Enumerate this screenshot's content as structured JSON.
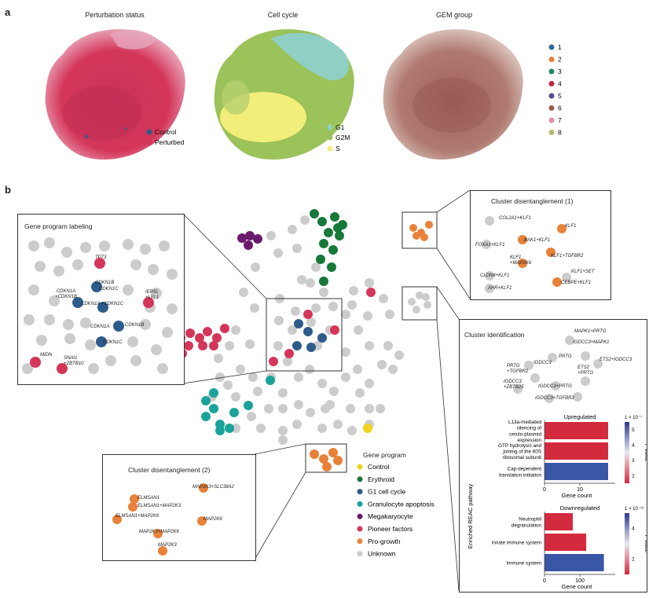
{
  "panel_a": {
    "letter": "a",
    "titles": [
      "Perturbation status",
      "Cell cycle",
      "GEM group"
    ],
    "perturbation_legend": [
      {
        "label": "Control",
        "color": "#2e5c8a"
      },
      {
        "label": "Perturbed",
        "color": "#d4365a"
      }
    ],
    "cellcycle_legend": [
      {
        "label": "G1",
        "color": "#8fcfc4"
      },
      {
        "label": "G2M",
        "color": "#9cc25a"
      },
      {
        "label": "S",
        "color": "#f2ee7a"
      }
    ],
    "gem_legend": [
      {
        "label": "1",
        "color": "#2e6b99"
      },
      {
        "label": "2",
        "color": "#e8823a"
      },
      {
        "label": "3",
        "color": "#1f8c5c"
      },
      {
        "label": "4",
        "color": "#c2253c"
      },
      {
        "label": "5",
        "color": "#5c4a8c"
      },
      {
        "label": "6",
        "color": "#9c5a4a"
      },
      {
        "label": "7",
        "color": "#e08ab0"
      },
      {
        "label": "8",
        "color": "#b8b870"
      }
    ]
  },
  "panel_b": {
    "letter": "b",
    "gene_program_title": "Gene program",
    "gene_program_legend": [
      {
        "label": "Control",
        "color": "#f2d21b"
      },
      {
        "label": "Erythroid",
        "color": "#17783a"
      },
      {
        "label": "G1 cell cycle",
        "color": "#2e5c8a"
      },
      {
        "label": "Granulocyte apoptosis",
        "color": "#1aa39a"
      },
      {
        "label": "Megakaryocyte",
        "color": "#6b1a6b"
      },
      {
        "label": "Pioneer factors",
        "color": "#d4365a"
      },
      {
        "label": "Pro-growth",
        "color": "#e8823a"
      },
      {
        "label": "Unknown",
        "color": "#cccccc"
      }
    ],
    "gene_program_labeling": {
      "title": "Gene program labeling",
      "labels": [
        "TP73",
        "CDKN1B",
        "CDKN1C",
        "CDKN1A +CDKN1B",
        "CDKN1A +CDKN1C",
        "IER5L +LYL1",
        "CDKN1A",
        "CDKN1B",
        "CDKN1C",
        "MIDN",
        "SNAI1 +ZBTB10"
      ]
    },
    "cluster1": {
      "title": "Cluster disentanglement (1)",
      "labels": [
        "COL2A1+KLF1",
        "KLF1",
        "BAK1+KLF1",
        "FOXA1+KLF1",
        "KLF1 +MAP2K6",
        "KLF1+TGFBR2",
        "CLDN6+KLF1",
        "KLF1+SET",
        "AHR+KLF1",
        "CEBPE+KLF1"
      ]
    },
    "cluster2": {
      "title": "Cluster disentanglement (2)",
      "labels": [
        "MAP2K3+SLC38A2",
        "ELMSAN1",
        "ELMSAN1+MAP2K3",
        "ELMSAN1+MAP2K6",
        "MAP2K6",
        "MAP2K3+MAP2K6",
        "MAP2K3"
      ]
    },
    "cluster_id": {
      "title": "Cluster identification",
      "labels": [
        "MAPK1+PRTG",
        "IGDCC3+MAPK1",
        "PRTG",
        "ETS2+IGDCC3",
        "PRTG +TGFBR2",
        "IGDCC3",
        "ETS2 +PRTG",
        "IGDCC3 +ZBTB25",
        "IGDCC3+PRTG",
        "IGDCC3+TGFBR2"
      ]
    }
  },
  "chart_data": [
    {
      "type": "bar",
      "title": "Upregulated",
      "orientation": "horizontal",
      "categories": [
        "L13a-mediated silencing of cerulo-plasmid expression",
        "GTP hydrolysis and joining of the 60S ribosomal subunit",
        "Cap-dependent translation initiation"
      ],
      "values": [
        18,
        18,
        18
      ],
      "bar_colors": [
        "#d42a3e",
        "#d42a3e",
        "#3a56a6"
      ],
      "xlabel": "Gene count",
      "ylabel": "Enriched REAC pathway",
      "xticks": [
        0,
        10
      ],
      "colorbar": {
        "label": "P value",
        "exponent": "1 × 10⁻⁷",
        "ticks": [
          "5",
          "4",
          "3",
          "2"
        ]
      }
    },
    {
      "type": "bar",
      "title": "Downregulated",
      "orientation": "horizontal",
      "categories": [
        "Neutrophil degranulation",
        "Innate immune system",
        "Immune system"
      ],
      "values": [
        80,
        118,
        168
      ],
      "bar_colors": [
        "#d42a3e",
        "#d42a3e",
        "#3a56a6"
      ],
      "xlabel": "Gene count",
      "xticks": [
        0,
        100
      ],
      "colorbar": {
        "label": "P value",
        "exponent": "1 × 10⁻¹³",
        "ticks": [
          "4",
          "2"
        ]
      }
    }
  ]
}
